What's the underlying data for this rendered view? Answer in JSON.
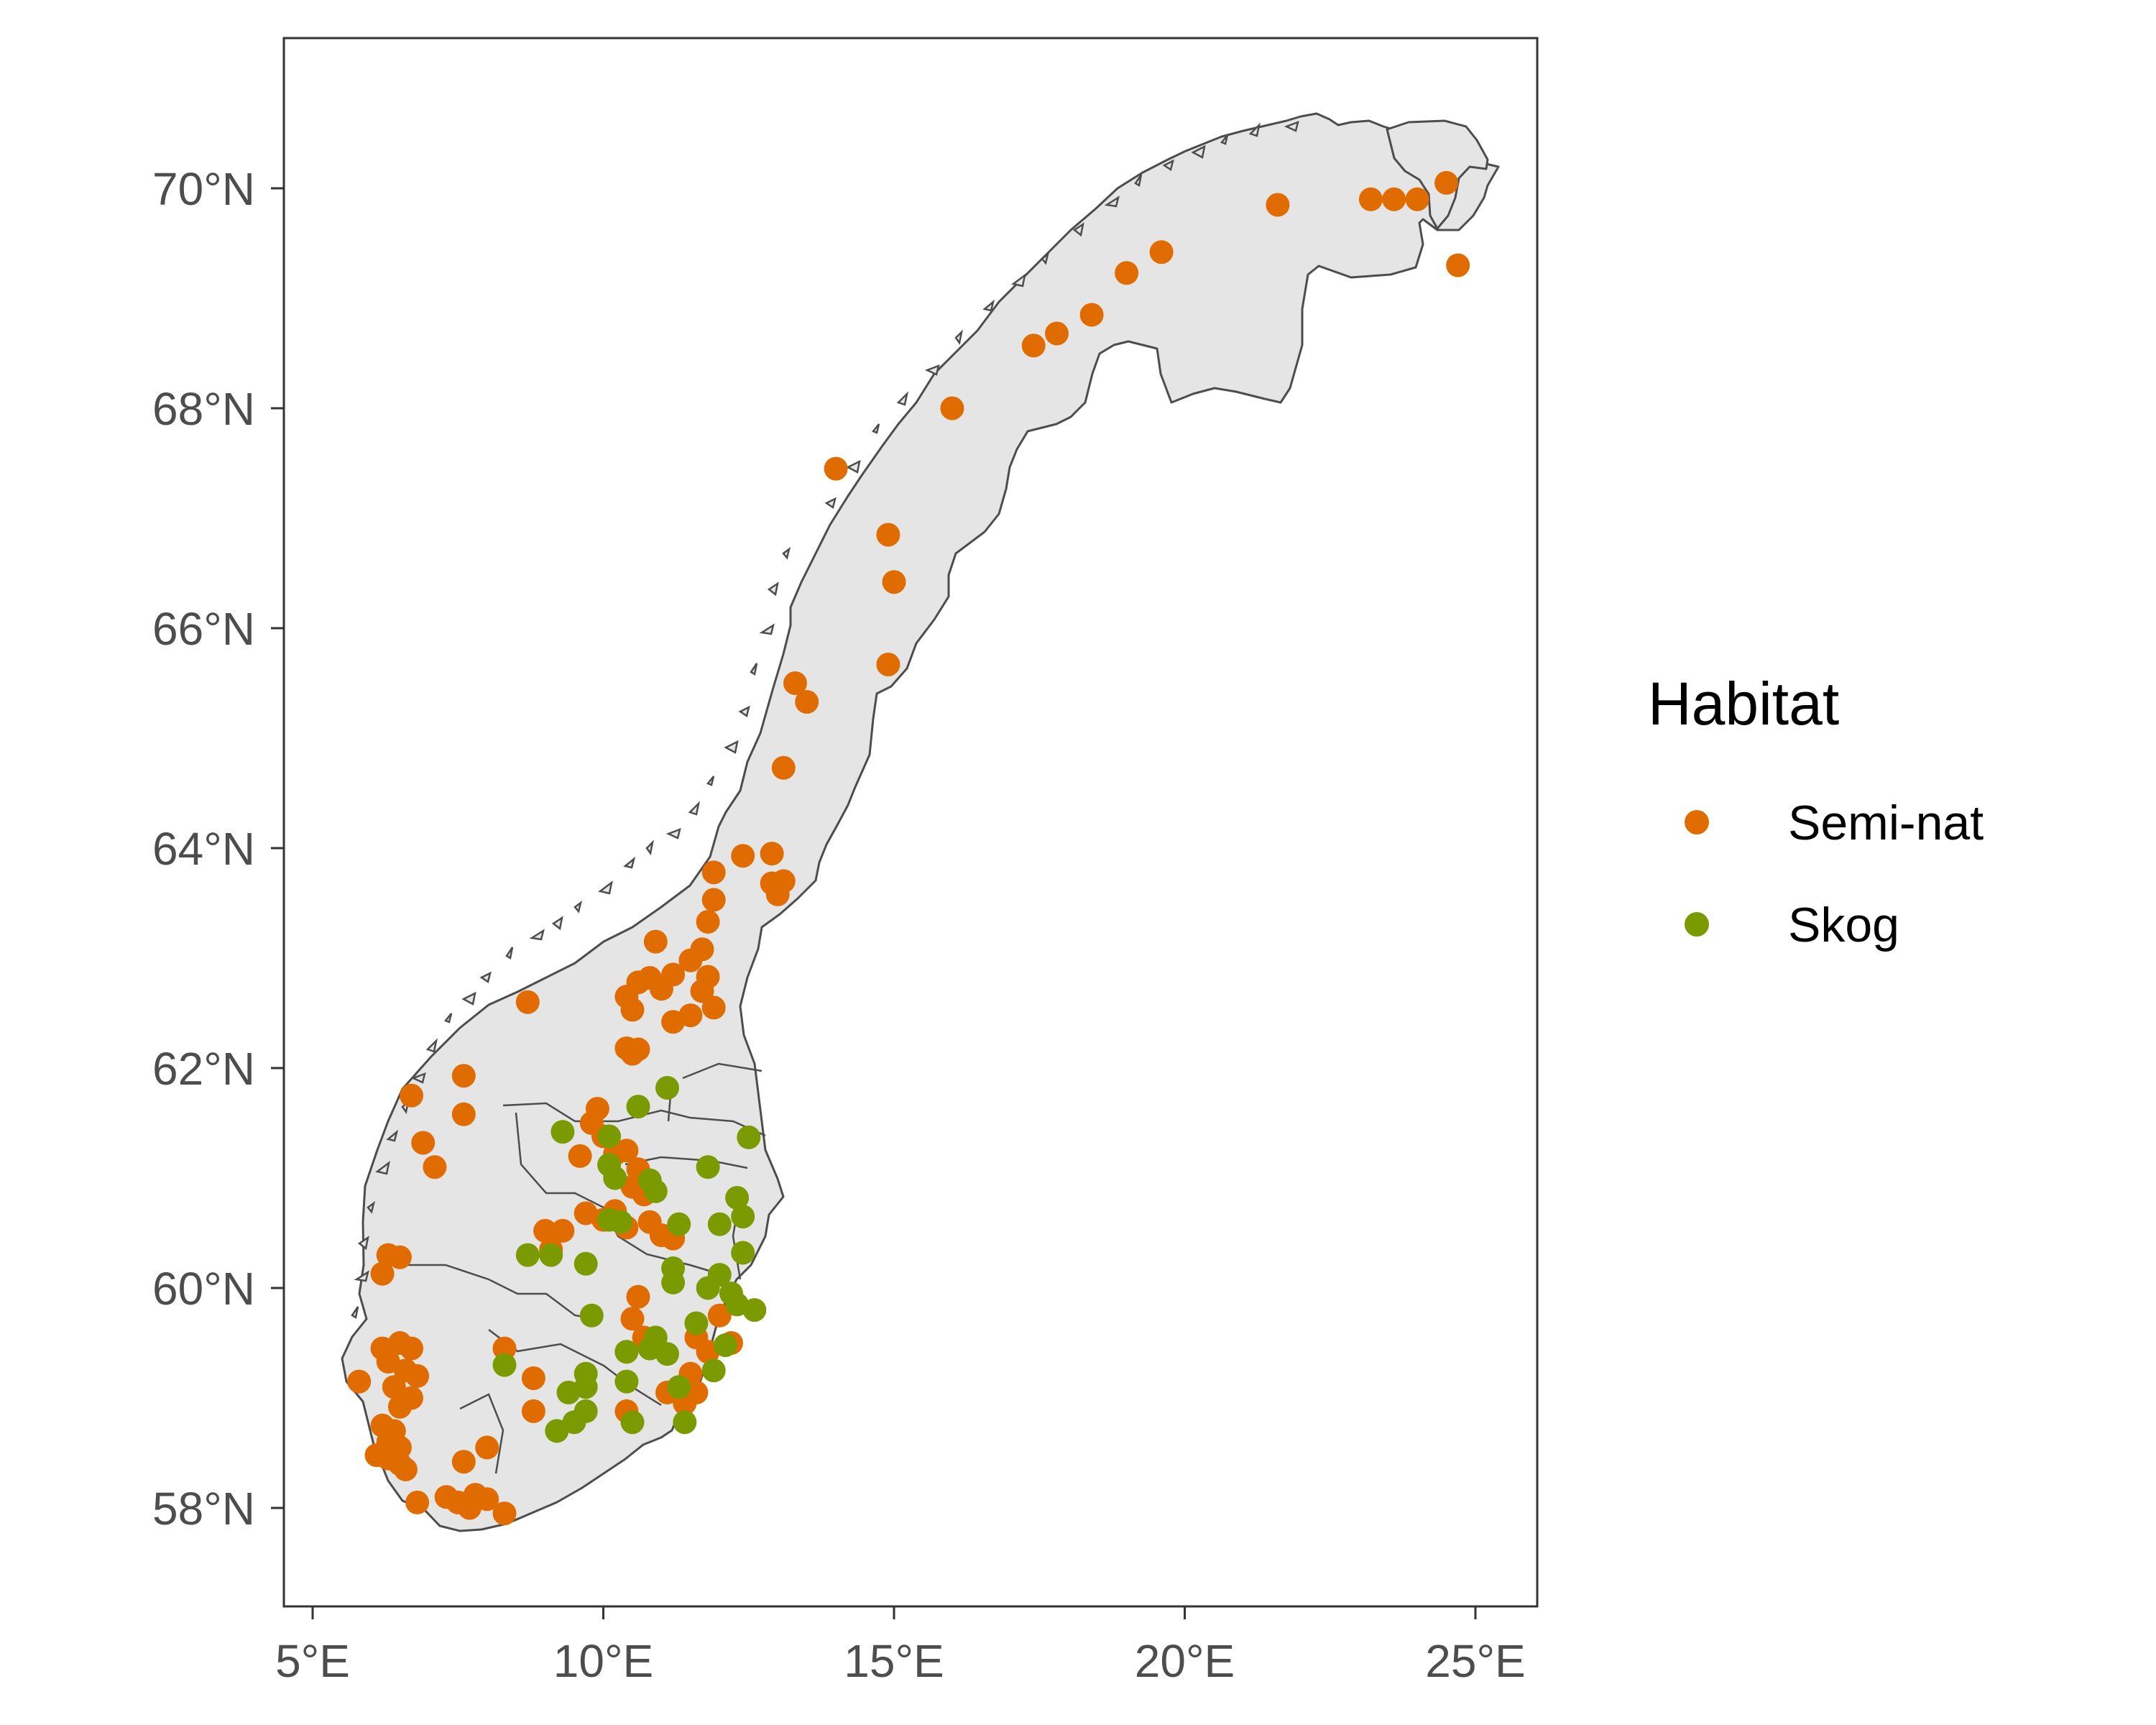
{
  "chart_data": {
    "type": "scatter",
    "title": "",
    "xlabel": "",
    "ylabel": "",
    "xlim": [
      4.5,
      26.1
    ],
    "ylim": [
      57.1,
      71.4
    ],
    "x_ticks": [
      5,
      10,
      15,
      20,
      25
    ],
    "y_ticks": [
      58,
      60,
      62,
      64,
      66,
      68,
      70
    ],
    "x_tick_labels": [
      "5°E",
      "10°E",
      "15°E",
      "20°E",
      "25°E"
    ],
    "y_tick_labels": [
      "58°N",
      "60°N",
      "62°N",
      "64°N",
      "66°N",
      "68°N",
      "70°N"
    ],
    "grid": false,
    "map_fill": "#e5e5e5",
    "map_stroke": "#4d4d4d",
    "legend": {
      "title": "Habitat",
      "position": "right"
    },
    "series": [
      {
        "name": "Semi-nat",
        "color": "#e06c00",
        "points": [
          [
            24.5,
            70.05
          ],
          [
            24.7,
            69.3
          ],
          [
            23.2,
            69.9
          ],
          [
            23.6,
            69.9
          ],
          [
            24.0,
            69.9
          ],
          [
            21.6,
            69.85
          ],
          [
            19.6,
            69.42
          ],
          [
            19.0,
            69.23
          ],
          [
            18.4,
            68.85
          ],
          [
            17.8,
            68.68
          ],
          [
            17.4,
            68.57
          ],
          [
            16.0,
            68.0
          ],
          [
            14.0,
            67.45
          ],
          [
            14.9,
            66.85
          ],
          [
            15.0,
            66.42
          ],
          [
            14.9,
            65.67
          ],
          [
            13.3,
            65.5
          ],
          [
            13.5,
            65.33
          ],
          [
            13.1,
            64.73
          ],
          [
            12.4,
            63.93
          ],
          [
            12.9,
            63.95
          ],
          [
            12.9,
            63.68
          ],
          [
            13.1,
            63.7
          ],
          [
            13.0,
            63.58
          ],
          [
            11.9,
            63.78
          ],
          [
            11.9,
            63.53
          ],
          [
            11.8,
            63.33
          ],
          [
            10.9,
            63.15
          ],
          [
            11.7,
            63.08
          ],
          [
            11.5,
            62.98
          ],
          [
            11.8,
            62.83
          ],
          [
            11.2,
            62.85
          ],
          [
            10.8,
            62.82
          ],
          [
            10.6,
            62.78
          ],
          [
            11.0,
            62.72
          ],
          [
            10.4,
            62.65
          ],
          [
            11.7,
            62.7
          ],
          [
            10.5,
            62.53
          ],
          [
            11.9,
            62.55
          ],
          [
            11.5,
            62.48
          ],
          [
            11.2,
            62.42
          ],
          [
            10.4,
            62.18
          ],
          [
            10.6,
            62.17
          ],
          [
            10.5,
            62.13
          ],
          [
            8.7,
            62.6
          ],
          [
            7.6,
            61.93
          ],
          [
            6.7,
            61.75
          ],
          [
            7.6,
            61.58
          ],
          [
            6.9,
            61.32
          ],
          [
            7.1,
            61.1
          ],
          [
            6.3,
            60.3
          ],
          [
            6.5,
            60.28
          ],
          [
            6.2,
            60.13
          ],
          [
            9.9,
            61.63
          ],
          [
            9.8,
            61.5
          ],
          [
            10.0,
            61.38
          ],
          [
            10.2,
            61.22
          ],
          [
            10.4,
            61.25
          ],
          [
            10.6,
            61.08
          ],
          [
            10.5,
            60.92
          ],
          [
            9.6,
            61.2
          ],
          [
            10.7,
            60.85
          ],
          [
            10.2,
            60.7
          ],
          [
            9.7,
            60.68
          ],
          [
            10.0,
            60.62
          ],
          [
            10.4,
            60.55
          ],
          [
            10.8,
            60.6
          ],
          [
            11.0,
            60.48
          ],
          [
            11.2,
            60.45
          ],
          [
            9.0,
            60.52
          ],
          [
            9.3,
            60.52
          ],
          [
            9.1,
            60.35
          ],
          [
            10.6,
            59.92
          ],
          [
            10.5,
            59.72
          ],
          [
            10.7,
            59.55
          ],
          [
            10.4,
            59.42
          ],
          [
            11.6,
            59.55
          ],
          [
            11.8,
            59.42
          ],
          [
            12.0,
            59.75
          ],
          [
            12.2,
            59.5
          ],
          [
            11.5,
            59.22
          ],
          [
            11.6,
            59.05
          ],
          [
            11.4,
            58.95
          ],
          [
            11.1,
            59.05
          ],
          [
            10.4,
            58.88
          ],
          [
            8.3,
            59.45
          ],
          [
            8.8,
            59.18
          ],
          [
            8.8,
            58.88
          ],
          [
            5.8,
            59.15
          ],
          [
            6.2,
            59.45
          ],
          [
            6.5,
            59.5
          ],
          [
            6.7,
            59.45
          ],
          [
            6.3,
            59.33
          ],
          [
            6.6,
            59.25
          ],
          [
            6.8,
            59.2
          ],
          [
            6.4,
            59.1
          ],
          [
            6.7,
            59.0
          ],
          [
            6.5,
            58.92
          ],
          [
            6.2,
            58.75
          ],
          [
            6.4,
            58.7
          ],
          [
            6.3,
            58.6
          ],
          [
            6.5,
            58.55
          ],
          [
            6.1,
            58.48
          ],
          [
            6.3,
            58.45
          ],
          [
            6.5,
            58.4
          ],
          [
            6.6,
            58.35
          ],
          [
            6.8,
            58.05
          ],
          [
            7.6,
            58.42
          ],
          [
            8.0,
            58.55
          ],
          [
            7.3,
            58.1
          ],
          [
            7.5,
            58.05
          ],
          [
            7.7,
            58.0
          ],
          [
            7.8,
            58.12
          ],
          [
            8.0,
            58.08
          ],
          [
            8.3,
            57.95
          ]
        ]
      },
      {
        "name": "Skog",
        "color": "#7a9a00",
        "points": [
          [
            11.1,
            61.82
          ],
          [
            10.6,
            61.65
          ],
          [
            12.5,
            61.37
          ],
          [
            9.3,
            61.42
          ],
          [
            10.1,
            61.38
          ],
          [
            10.1,
            61.12
          ],
          [
            10.2,
            61.0
          ],
          [
            10.8,
            60.98
          ],
          [
            10.9,
            60.88
          ],
          [
            11.8,
            61.1
          ],
          [
            12.3,
            60.82
          ],
          [
            12.4,
            60.65
          ],
          [
            12.0,
            60.58
          ],
          [
            11.3,
            60.58
          ],
          [
            10.1,
            60.62
          ],
          [
            10.3,
            60.6
          ],
          [
            12.4,
            60.32
          ],
          [
            8.7,
            60.3
          ],
          [
            9.1,
            60.3
          ],
          [
            9.7,
            60.22
          ],
          [
            11.2,
            60.18
          ],
          [
            11.2,
            60.05
          ],
          [
            12.0,
            60.12
          ],
          [
            11.8,
            60.0
          ],
          [
            12.2,
            59.95
          ],
          [
            12.3,
            59.85
          ],
          [
            12.6,
            59.8
          ],
          [
            9.8,
            59.75
          ],
          [
            11.6,
            59.68
          ],
          [
            12.1,
            59.48
          ],
          [
            10.9,
            59.55
          ],
          [
            10.8,
            59.45
          ],
          [
            10.4,
            59.42
          ],
          [
            11.1,
            59.4
          ],
          [
            8.3,
            59.3
          ],
          [
            9.7,
            59.22
          ],
          [
            9.7,
            59.1
          ],
          [
            9.4,
            59.05
          ],
          [
            10.4,
            59.15
          ],
          [
            11.9,
            59.25
          ],
          [
            11.3,
            59.1
          ],
          [
            9.7,
            58.88
          ],
          [
            9.5,
            58.78
          ],
          [
            9.2,
            58.7
          ],
          [
            10.5,
            58.78
          ],
          [
            11.4,
            58.78
          ]
        ]
      }
    ]
  }
}
